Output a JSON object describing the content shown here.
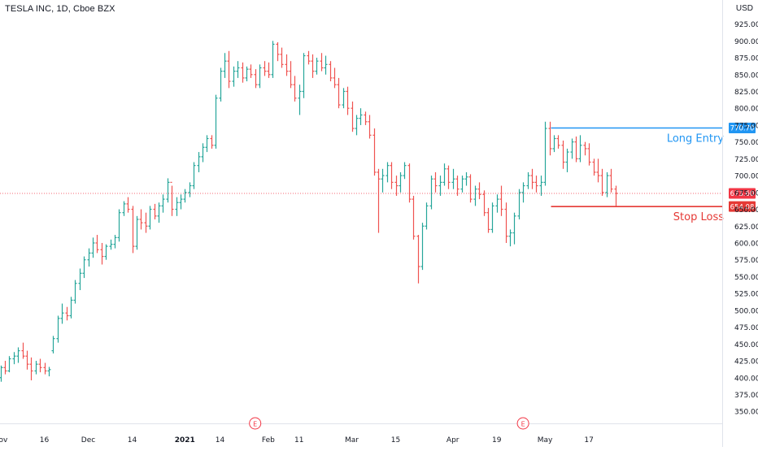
{
  "header": {
    "symbol": "TESLA INC, 1D, Cboe BZX",
    "currency_unit": "USD"
  },
  "colors": {
    "up": "#26a69a",
    "down": "#ef5350",
    "entry": "#2196f3",
    "stop": "#e53935",
    "current": "#f23645",
    "axis_text": "#131722",
    "event": "#f23645"
  },
  "chart_data": {
    "type": "ohlc",
    "ylabel": "USD",
    "ylim": [
      340,
      950
    ],
    "y_ticks": [
      350,
      375,
      400,
      425,
      450,
      475,
      500,
      525,
      550,
      575,
      600,
      625,
      650,
      675,
      700,
      725,
      750,
      775,
      800,
      825,
      850,
      875,
      900,
      925
    ],
    "y_tick_labels": [
      "350.00",
      "375.00",
      "400.00",
      "425.00",
      "450.00",
      "475.00",
      "500.00",
      "525.00",
      "550.00",
      "575.00",
      "600.00",
      "625.00",
      "650.00",
      "675.00",
      "700.00",
      "725.00",
      "750.00",
      "775.00",
      "800.00",
      "825.00",
      "850.00",
      "875.00",
      "900.00",
      "925.00"
    ],
    "x_ticks": [
      {
        "label": "Nov",
        "bar": 0
      },
      {
        "label": "16",
        "bar": 10
      },
      {
        "label": "Dec",
        "bar": 20
      },
      {
        "label": "14",
        "bar": 30
      },
      {
        "label": "2021",
        "bar": 42
      },
      {
        "label": "14",
        "bar": 50
      },
      {
        "label": "Feb",
        "bar": 61
      },
      {
        "label": "11",
        "bar": 68
      },
      {
        "label": "Mar",
        "bar": 80
      },
      {
        "label": "15",
        "bar": 90
      },
      {
        "label": "Apr",
        "bar": 103
      },
      {
        "label": "19",
        "bar": 113
      },
      {
        "label": "May",
        "bar": 124
      },
      {
        "label": "17",
        "bar": 134
      }
    ],
    "events": [
      {
        "label": "E",
        "bar": 58
      },
      {
        "label": "E",
        "bar": 119
      }
    ],
    "ohlc": [
      [
        400,
        418,
        394,
        415
      ],
      [
        415,
        425,
        405,
        410
      ],
      [
        410,
        432,
        408,
        428
      ],
      [
        428,
        438,
        420,
        432
      ],
      [
        432,
        445,
        422,
        440
      ],
      [
        440,
        452,
        428,
        432
      ],
      [
        432,
        440,
        412,
        420
      ],
      [
        420,
        430,
        396,
        410
      ],
      [
        410,
        425,
        405,
        420
      ],
      [
        420,
        428,
        408,
        415
      ],
      [
        415,
        422,
        405,
        410
      ],
      [
        410,
        416,
        402,
        412
      ],
      [
        440,
        462,
        436,
        458
      ],
      [
        458,
        492,
        452,
        488
      ],
      [
        488,
        510,
        480,
        496
      ],
      [
        496,
        505,
        485,
        492
      ],
      [
        492,
        520,
        488,
        515
      ],
      [
        515,
        545,
        510,
        540
      ],
      [
        540,
        562,
        530,
        555
      ],
      [
        555,
        580,
        548,
        575
      ],
      [
        575,
        592,
        565,
        585
      ],
      [
        585,
        608,
        578,
        600
      ],
      [
        600,
        612,
        585,
        590
      ],
      [
        590,
        600,
        568,
        580
      ],
      [
        580,
        598,
        575,
        595
      ],
      [
        595,
        605,
        590,
        598
      ],
      [
        598,
        612,
        592,
        608
      ],
      [
        608,
        650,
        602,
        645
      ],
      [
        645,
        662,
        640,
        658
      ],
      [
        658,
        668,
        645,
        650
      ],
      [
        650,
        655,
        585,
        595
      ],
      [
        595,
        640,
        590,
        635
      ],
      [
        635,
        650,
        620,
        630
      ],
      [
        630,
        645,
        615,
        625
      ],
      [
        625,
        655,
        620,
        650
      ],
      [
        650,
        658,
        635,
        640
      ],
      [
        640,
        660,
        630,
        655
      ],
      [
        655,
        672,
        645,
        665
      ],
      [
        665,
        696,
        660,
        690
      ],
      [
        690,
        685,
        640,
        650
      ],
      [
        650,
        668,
        640,
        660
      ],
      [
        660,
        672,
        650,
        665
      ],
      [
        665,
        680,
        660,
        675
      ],
      [
        675,
        690,
        668,
        685
      ],
      [
        685,
        720,
        680,
        715
      ],
      [
        715,
        735,
        705,
        728
      ],
      [
        728,
        748,
        720,
        742
      ],
      [
        742,
        760,
        735,
        755
      ],
      [
        755,
        760,
        740,
        745
      ],
      [
        745,
        820,
        740,
        815
      ],
      [
        815,
        860,
        810,
        855
      ],
      [
        855,
        882,
        845,
        870
      ],
      [
        870,
        885,
        830,
        840
      ],
      [
        840,
        862,
        832,
        855
      ],
      [
        855,
        870,
        845,
        860
      ],
      [
        860,
        868,
        838,
        845
      ],
      [
        845,
        862,
        840,
        858
      ],
      [
        858,
        865,
        845,
        850
      ],
      [
        850,
        858,
        830,
        835
      ],
      [
        835,
        865,
        830,
        860
      ],
      [
        860,
        870,
        848,
        855
      ],
      [
        855,
        868,
        845,
        850
      ],
      [
        850,
        900,
        845,
        895
      ],
      [
        895,
        898,
        870,
        880
      ],
      [
        880,
        890,
        860,
        865
      ],
      [
        865,
        880,
        848,
        855
      ],
      [
        855,
        870,
        830,
        835
      ],
      [
        835,
        848,
        810,
        815
      ],
      [
        815,
        835,
        790,
        825
      ],
      [
        825,
        882,
        815,
        878
      ],
      [
        878,
        885,
        865,
        870
      ],
      [
        870,
        880,
        845,
        855
      ],
      [
        855,
        875,
        850,
        870
      ],
      [
        870,
        882,
        855,
        860
      ],
      [
        860,
        878,
        850,
        865
      ],
      [
        865,
        870,
        840,
        845
      ],
      [
        845,
        860,
        830,
        835
      ],
      [
        835,
        845,
        800,
        805
      ],
      [
        805,
        830,
        800,
        825
      ],
      [
        825,
        832,
        790,
        800
      ],
      [
        800,
        810,
        765,
        770
      ],
      [
        770,
        790,
        760,
        785
      ],
      [
        785,
        800,
        775,
        790
      ],
      [
        790,
        795,
        775,
        780
      ],
      [
        780,
        790,
        755,
        760
      ],
      [
        760,
        770,
        700,
        705
      ],
      [
        705,
        710,
        615,
        695
      ],
      [
        695,
        710,
        675,
        700
      ],
      [
        700,
        720,
        690,
        715
      ],
      [
        715,
        720,
        680,
        690
      ],
      [
        690,
        700,
        670,
        685
      ],
      [
        685,
        705,
        675,
        700
      ],
      [
        700,
        720,
        695,
        715
      ],
      [
        715,
        718,
        660,
        665
      ],
      [
        665,
        670,
        605,
        610
      ],
      [
        610,
        612,
        540,
        565
      ],
      [
        565,
        630,
        560,
        625
      ],
      [
        625,
        660,
        620,
        655
      ],
      [
        655,
        700,
        650,
        695
      ],
      [
        695,
        705,
        675,
        685
      ],
      [
        685,
        700,
        670,
        690
      ],
      [
        690,
        718,
        685,
        710
      ],
      [
        710,
        715,
        680,
        690
      ],
      [
        690,
        710,
        680,
        695
      ],
      [
        695,
        700,
        670,
        680
      ],
      [
        680,
        700,
        675,
        695
      ],
      [
        695,
        705,
        685,
        698
      ],
      [
        698,
        702,
        660,
        665
      ],
      [
        665,
        685,
        655,
        680
      ],
      [
        680,
        690,
        665,
        672
      ],
      [
        672,
        678,
        640,
        645
      ],
      [
        645,
        652,
        615,
        620
      ],
      [
        620,
        660,
        615,
        655
      ],
      [
        655,
        672,
        645,
        665
      ],
      [
        665,
        685,
        640,
        650
      ],
      [
        650,
        660,
        600,
        610
      ],
      [
        610,
        620,
        595,
        615
      ],
      [
        615,
        645,
        598,
        640
      ],
      [
        640,
        680,
        635,
        675
      ],
      [
        675,
        690,
        660,
        685
      ],
      [
        685,
        705,
        680,
        700
      ],
      [
        700,
        710,
        680,
        690
      ],
      [
        690,
        700,
        675,
        685
      ],
      [
        685,
        700,
        670,
        690
      ],
      [
        690,
        780,
        685,
        770
      ],
      [
        770,
        780,
        730,
        740
      ],
      [
        740,
        760,
        735,
        755
      ],
      [
        755,
        760,
        740,
        745
      ],
      [
        745,
        752,
        710,
        720
      ],
      [
        720,
        740,
        705,
        735
      ],
      [
        735,
        755,
        725,
        750
      ],
      [
        750,
        758,
        720,
        725
      ],
      [
        725,
        760,
        720,
        745
      ],
      [
        745,
        750,
        730,
        740
      ],
      [
        740,
        748,
        715,
        720
      ],
      [
        720,
        725,
        700,
        705
      ],
      [
        705,
        725,
        690,
        700
      ],
      [
        700,
        710,
        670,
        675
      ],
      [
        675,
        705,
        668,
        700
      ],
      [
        700,
        710,
        675,
        680
      ],
      [
        680,
        685,
        655,
        673.6
      ]
    ],
    "levels": [
      {
        "name": "Long Entry",
        "value": 770.7,
        "label": "770.70",
        "bar_start": 125
      },
      {
        "name": "Stop Loss",
        "value": 654.08,
        "label": "654.08",
        "bar_start": 125
      }
    ],
    "current_price": {
      "value": 673.6,
      "label": "673.60"
    }
  }
}
